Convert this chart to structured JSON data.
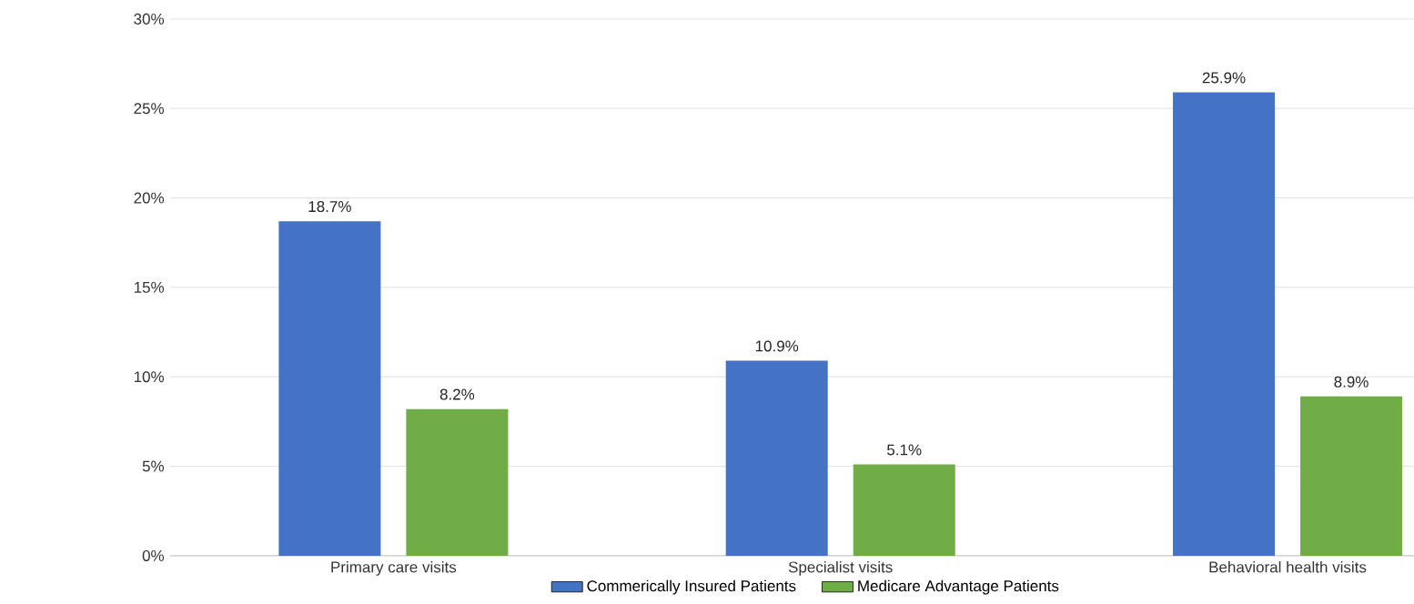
{
  "chart_data": {
    "type": "bar",
    "categories": [
      "Primary care visits",
      "Specialist visits",
      "Behavioral health visits"
    ],
    "series": [
      {
        "name": "Commerically Insured Patients",
        "color": "#4472c4",
        "values": [
          18.7,
          10.9,
          25.9
        ],
        "value_labels": [
          "18.7%",
          "10.9%",
          "25.9%"
        ]
      },
      {
        "name": "Medicare Advantage Patients",
        "color": "#70ad47",
        "values": [
          8.2,
          5.1,
          8.9
        ],
        "value_labels": [
          "8.2%",
          "5.1%",
          "8.9%"
        ]
      }
    ],
    "ylim": [
      0,
      30
    ],
    "yticks": [
      {
        "value": 0,
        "label": "0%"
      },
      {
        "value": 5,
        "label": "5%"
      },
      {
        "value": 10,
        "label": "10%"
      },
      {
        "value": 15,
        "label": "15%"
      },
      {
        "value": 20,
        "label": "20%"
      },
      {
        "value": 25,
        "label": "25%"
      },
      {
        "value": 30,
        "label": "30%"
      }
    ],
    "grid": "y",
    "legend": "bottom"
  }
}
